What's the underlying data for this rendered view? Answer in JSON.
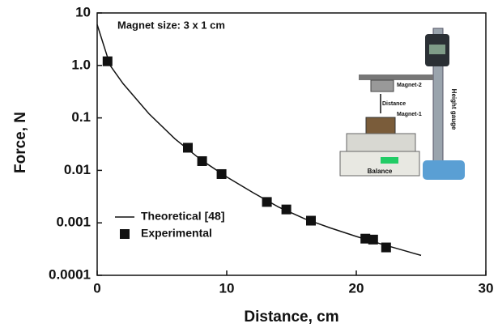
{
  "chart_data": {
    "type": "scatter",
    "x_label": "Distance, cm",
    "y_label": "Force, N",
    "annotation": "Magnet size: 3 x 1 cm",
    "xlim": [
      0,
      30
    ],
    "xticks": [
      0,
      10,
      20,
      30
    ],
    "ylim": [
      0.0001,
      10
    ],
    "yticks": [
      10,
      {
        "value": 1,
        "label": "1.0"
      },
      0.1,
      0.01,
      0.001,
      0.0001
    ],
    "y_scale": "log",
    "legend": "lower left",
    "series": [
      {
        "name": "Theoretical [48]",
        "type": "line",
        "color": "#111111",
        "x": [
          0,
          1,
          2,
          4,
          6,
          8,
          10,
          12,
          14,
          16,
          18,
          20,
          22,
          25
        ],
        "values": [
          6,
          1.0,
          0.45,
          0.12,
          0.04,
          0.016,
          0.0075,
          0.0038,
          0.002,
          0.0012,
          0.0008,
          0.00055,
          0.00039,
          0.00024
        ]
      },
      {
        "name": "Experimental",
        "type": "scatter",
        "color": "#111111",
        "x": [
          0.8,
          7,
          8.1,
          9.6,
          13.1,
          14.6,
          16.5,
          20.7,
          21.3,
          22.3
        ],
        "values": [
          1.2,
          0.027,
          0.015,
          0.0085,
          0.0025,
          0.0018,
          0.0011,
          0.0005,
          0.00048,
          0.00034
        ]
      }
    ]
  },
  "inset": {
    "magnet_2": "Magnet-2",
    "distance": "Distance",
    "magnet_1": "Magnet-1",
    "balance": "Balance",
    "height_gauge": "Height gauge"
  }
}
